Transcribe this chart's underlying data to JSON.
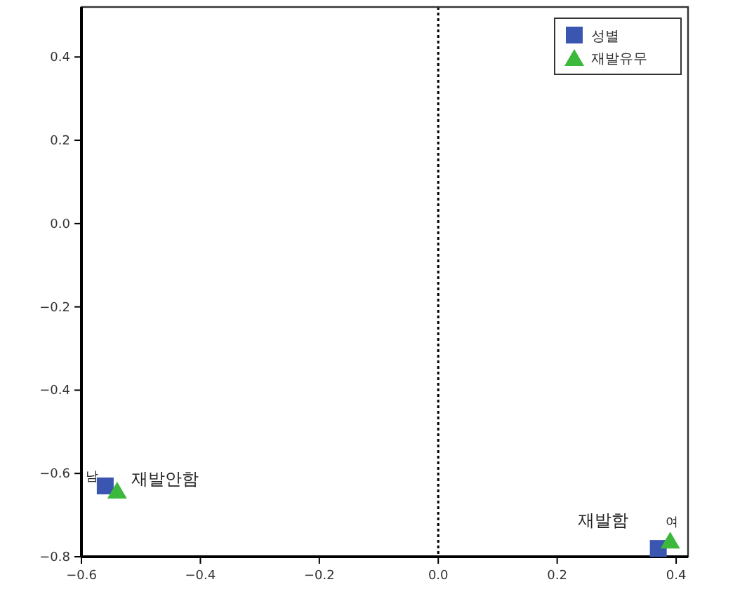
{
  "chart_data": {
    "type": "scatter",
    "xlim": [
      -0.6,
      0.42
    ],
    "ylim": [
      -0.8,
      0.52
    ],
    "xticks": [
      {
        "value": -0.6,
        "label": "−0.6"
      },
      {
        "value": -0.4,
        "label": "−0.4"
      },
      {
        "value": -0.2,
        "label": "−0.2"
      },
      {
        "value": 0,
        "label": "0.0"
      },
      {
        "value": 0.2,
        "label": "0.2"
      },
      {
        "value": 0.4,
        "label": "0.4"
      }
    ],
    "yticks": [
      {
        "value": -0.8,
        "label": "−0.8"
      },
      {
        "value": -0.6,
        "label": "−0.6"
      },
      {
        "value": -0.4,
        "label": "−0.4"
      },
      {
        "value": -0.2,
        "label": "−0.2"
      },
      {
        "value": 0,
        "label": "0.0"
      },
      {
        "value": 0.2,
        "label": "0.2"
      },
      {
        "value": 0.4,
        "label": "0.4"
      }
    ],
    "series": [
      {
        "name": "성별",
        "color": "#3a56b0",
        "marker": "square",
        "x": [
          -0.56,
          0.37
        ],
        "values": [
          -0.63,
          -0.78
        ]
      },
      {
        "name": "재발유무",
        "color": "#3cb83c",
        "marker": "triangle",
        "x": [
          -0.54,
          0.39
        ],
        "values": [
          -0.64,
          -0.76
        ]
      }
    ],
    "annotations": [
      {
        "text": "남",
        "x": -0.56,
        "y": -0.63
      },
      {
        "text": "여",
        "x": 0.37,
        "y": -0.78
      },
      {
        "text": "재발안함",
        "x": -0.54,
        "y": -0.64
      },
      {
        "text": "재발함",
        "x": 0.39,
        "y": -0.76
      }
    ],
    "ref_lines": [
      {
        "axis": "x",
        "value": 0,
        "line_style": "dotted",
        "color": "#000000"
      }
    ],
    "legend": "top right"
  }
}
